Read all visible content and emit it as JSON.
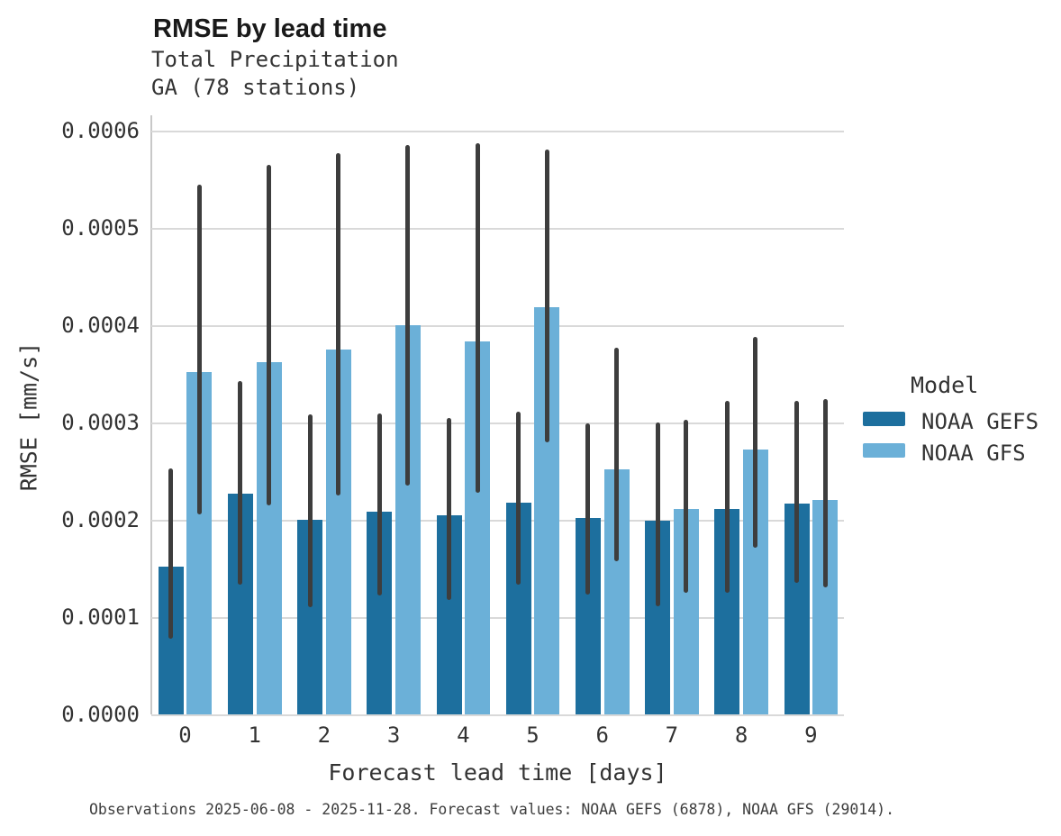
{
  "header": {
    "title": "RMSE by lead time",
    "subtitle_line1": "Total Precipitation",
    "subtitle_line2": "GA (78 stations)"
  },
  "caption": "Observations 2025-06-08 - 2025-11-28. Forecast values: NOAA GEFS (6878), NOAA GFS (29014).",
  "colors": {
    "gefs_bar": "#1d6f9e",
    "gfs_bar": "#6bb0d8",
    "error_bar": "#3d3d3d",
    "gridline": "#d9d9d9",
    "axis_spine": "#c8c8c8"
  },
  "chart_data": {
    "type": "bar",
    "title": "RMSE by lead time",
    "subtitle": [
      "Total Precipitation",
      "GA (78 stations)"
    ],
    "xlabel": "Forecast lead time [days]",
    "ylabel": "RMSE [mm/s]",
    "categories": [
      "0",
      "1",
      "2",
      "3",
      "4",
      "5",
      "6",
      "7",
      "8",
      "9"
    ],
    "ylim": [
      0,
      0.0006
    ],
    "ytick_values": [
      0,
      0.0001,
      0.0002,
      0.0003,
      0.0004,
      0.0005,
      0.0006
    ],
    "ytick_labels": [
      "0.0000",
      "0.0001",
      "0.0002",
      "0.0003",
      "0.0004",
      "0.0005",
      "0.0006"
    ],
    "grid": true,
    "legend": {
      "title": "Model",
      "position": "right",
      "entries": [
        "NOAA GEFS",
        "NOAA GFS"
      ]
    },
    "series": [
      {
        "name": "NOAA GEFS",
        "color": "#1d6f9e",
        "values": [
          0.000152,
          0.000227,
          0.0002,
          0.000208,
          0.000205,
          0.000218,
          0.000202,
          0.000199,
          0.000211,
          0.000217
        ],
        "err_low": [
          7.8e-05,
          0.000133,
          0.00011,
          0.000122,
          0.000118,
          0.000133,
          0.000123,
          0.000111,
          0.000125,
          0.000135
        ],
        "err_high": [
          0.000253,
          0.000343,
          0.000308,
          0.000309,
          0.000305,
          0.000311,
          0.000299,
          0.0003,
          0.000322,
          0.000322
        ]
      },
      {
        "name": "NOAA GFS",
        "color": "#6bb0d8",
        "values": [
          0.000352,
          0.000362,
          0.000375,
          0.0004,
          0.000383,
          0.000419,
          0.000252,
          0.000211,
          0.000272,
          0.00022
        ],
        "err_low": [
          0.000206,
          0.000215,
          0.000225,
          0.000235,
          0.000228,
          0.00028,
          0.000157,
          0.000125,
          0.000171,
          0.000131
        ],
        "err_high": [
          0.000545,
          0.000565,
          0.000577,
          0.000585,
          0.000587,
          0.000581,
          0.000377,
          0.000303,
          0.000388,
          0.000324
        ]
      }
    ]
  }
}
